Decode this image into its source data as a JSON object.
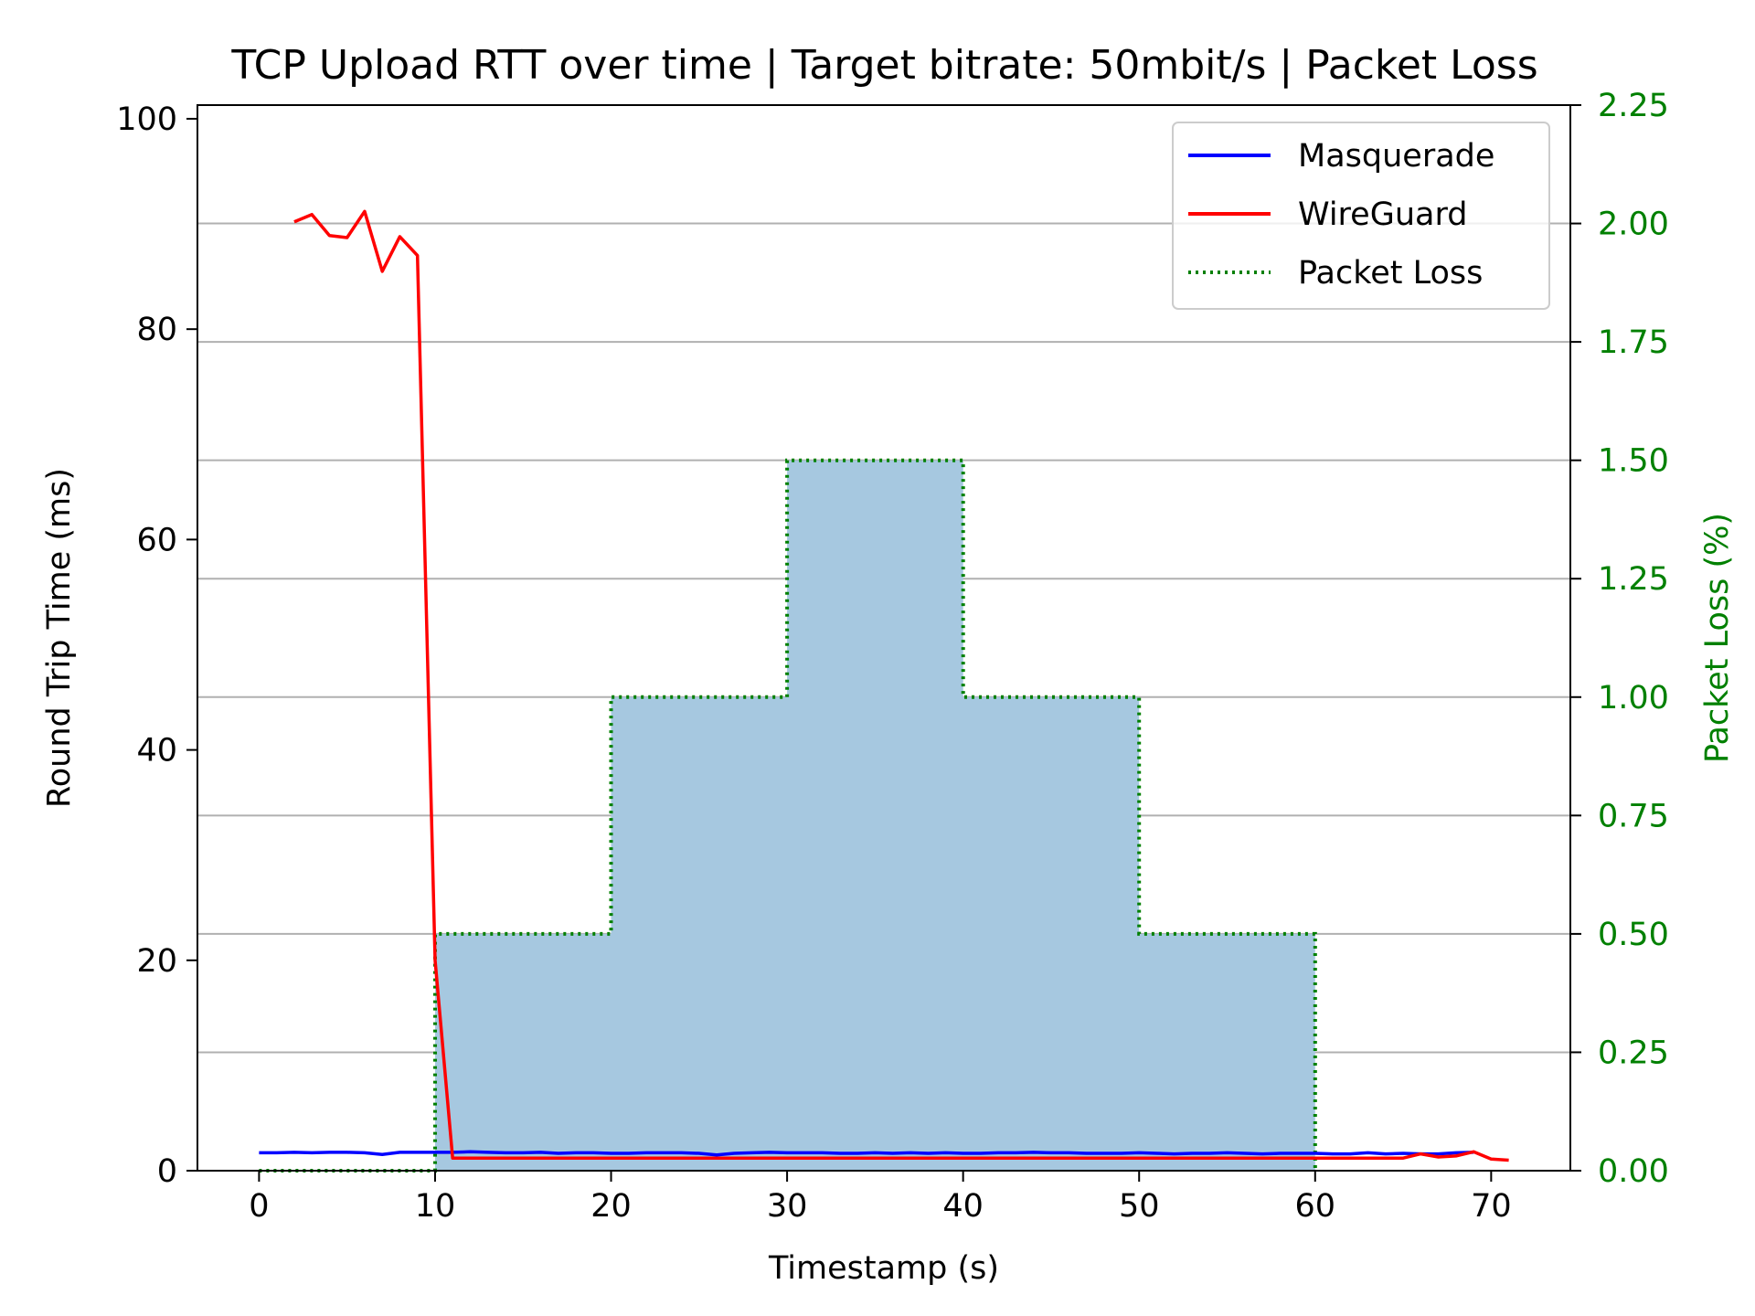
{
  "chart_data": {
    "type": "line",
    "title": "TCP Upload RTT over time | Target bitrate: 50mbit/s | Packet Loss",
    "xlabel": "Timestamp (s)",
    "ylabel": "Round Trip Time (ms)",
    "y2label": "Packet Loss (%)",
    "xlim": [
      -3.5,
      74.5
    ],
    "ylim": [
      0,
      101.3
    ],
    "y2lim": [
      0,
      2.25
    ],
    "x_ticks": [
      0,
      10,
      20,
      30,
      40,
      50,
      60,
      70
    ],
    "y_ticks": [
      0,
      20,
      40,
      60,
      80,
      100
    ],
    "y2_ticks": [
      "0.00",
      "0.25",
      "0.50",
      "0.75",
      "1.00",
      "1.25",
      "1.50",
      "1.75",
      "2.00",
      "2.25"
    ],
    "grid": "horizontal on secondary axis ticks",
    "legend_position": "upper right",
    "colors": {
      "masquerade": "#0000ff",
      "wireguard": "#ff0000",
      "packet_loss": "#008000",
      "fill": "#a6c8e0",
      "grid": "#b0b0b0"
    },
    "series": [
      {
        "name": "Masquerade",
        "axis": "left",
        "x": [
          0,
          1,
          2,
          3,
          4,
          5,
          6,
          7,
          8,
          9,
          10,
          11,
          12,
          13,
          14,
          15,
          16,
          17,
          18,
          19,
          20,
          21,
          22,
          23,
          24,
          25,
          26,
          27,
          28,
          29,
          30,
          31,
          32,
          33,
          34,
          35,
          36,
          37,
          38,
          39,
          40,
          41,
          42,
          43,
          44,
          45,
          46,
          47,
          48,
          49,
          50,
          51,
          52,
          53,
          54,
          55,
          56,
          57,
          58,
          59,
          60,
          61,
          62,
          63,
          64,
          65,
          66,
          67,
          68,
          69
        ],
        "values": [
          1.7,
          1.7,
          1.75,
          1.7,
          1.75,
          1.75,
          1.7,
          1.55,
          1.75,
          1.75,
          1.75,
          1.75,
          1.8,
          1.75,
          1.7,
          1.7,
          1.75,
          1.65,
          1.7,
          1.7,
          1.65,
          1.65,
          1.7,
          1.7,
          1.7,
          1.65,
          1.5,
          1.65,
          1.7,
          1.75,
          1.7,
          1.7,
          1.7,
          1.65,
          1.65,
          1.7,
          1.65,
          1.7,
          1.65,
          1.7,
          1.65,
          1.65,
          1.7,
          1.7,
          1.75,
          1.7,
          1.7,
          1.65,
          1.65,
          1.65,
          1.7,
          1.65,
          1.6,
          1.65,
          1.65,
          1.7,
          1.65,
          1.6,
          1.65,
          1.65,
          1.65,
          1.6,
          1.6,
          1.7,
          1.6,
          1.65,
          1.6,
          1.6,
          1.7,
          1.75
        ]
      },
      {
        "name": "WireGuard",
        "axis": "left",
        "x": [
          2,
          3,
          4,
          5,
          6,
          7,
          8,
          9,
          10,
          11,
          12,
          13,
          14,
          15,
          16,
          17,
          18,
          19,
          20,
          21,
          22,
          23,
          24,
          25,
          26,
          27,
          28,
          29,
          30,
          31,
          32,
          33,
          34,
          35,
          36,
          37,
          38,
          39,
          40,
          41,
          42,
          43,
          44,
          45,
          46,
          47,
          48,
          49,
          50,
          51,
          52,
          53,
          54,
          55,
          56,
          57,
          58,
          59,
          60,
          61,
          62,
          63,
          64,
          65,
          66,
          67,
          68,
          69,
          70,
          71
        ],
        "values": [
          90.2,
          90.9,
          88.9,
          88.7,
          91.2,
          85.5,
          88.8,
          87.0,
          20.0,
          1.2,
          1.2,
          1.2,
          1.2,
          1.2,
          1.2,
          1.2,
          1.2,
          1.2,
          1.2,
          1.2,
          1.2,
          1.2,
          1.2,
          1.2,
          1.2,
          1.2,
          1.2,
          1.2,
          1.2,
          1.2,
          1.2,
          1.2,
          1.2,
          1.2,
          1.2,
          1.2,
          1.2,
          1.2,
          1.2,
          1.2,
          1.2,
          1.2,
          1.2,
          1.2,
          1.2,
          1.2,
          1.2,
          1.2,
          1.2,
          1.2,
          1.2,
          1.2,
          1.2,
          1.2,
          1.2,
          1.2,
          1.2,
          1.2,
          1.2,
          1.2,
          1.2,
          1.2,
          1.2,
          1.2,
          1.6,
          1.3,
          1.4,
          1.8,
          1.1,
          1.0
        ]
      },
      {
        "name": "Packet Loss",
        "axis": "right",
        "style": "dotted step",
        "x": [
          0,
          10,
          10,
          20,
          20,
          30,
          30,
          40,
          40,
          50,
          50,
          60,
          60
        ],
        "values": [
          0,
          0,
          0.5,
          0.5,
          1.0,
          1.0,
          1.5,
          1.5,
          1.0,
          1.0,
          0.5,
          0.5,
          0
        ]
      }
    ]
  }
}
